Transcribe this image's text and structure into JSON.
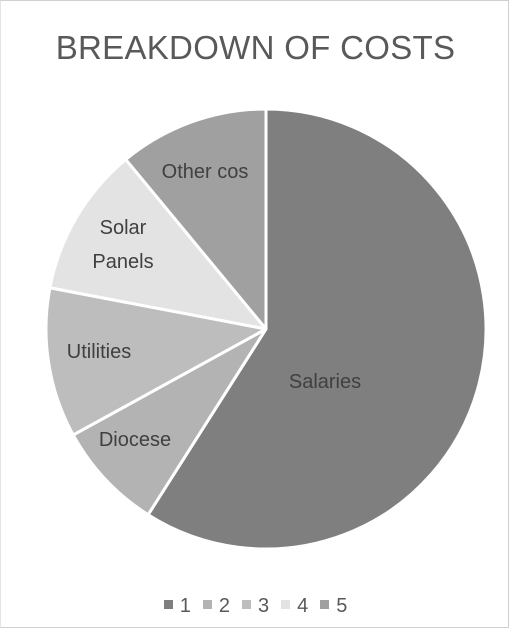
{
  "chart_data": {
    "type": "pie",
    "title": "BREAKDOWN OF COSTS",
    "slices": [
      {
        "label": "Salaries",
        "value": 59,
        "legend": "1",
        "color": "#7f7f7f"
      },
      {
        "label": "Diocese",
        "value": 8,
        "legend": "2",
        "color": "#b3b3b3"
      },
      {
        "label": "Utilities",
        "value": 11,
        "legend": "3",
        "color": "#bdbdbd"
      },
      {
        "label": "Solar Panels",
        "value": 11,
        "legend": "4",
        "color": "#e3e3e3"
      },
      {
        "label": "Other cos",
        "value": 11,
        "legend": "5",
        "color": "#a0a0a0"
      }
    ],
    "legend_position": "bottom",
    "start_angle_deg": 0,
    "direction": "clockwise"
  }
}
